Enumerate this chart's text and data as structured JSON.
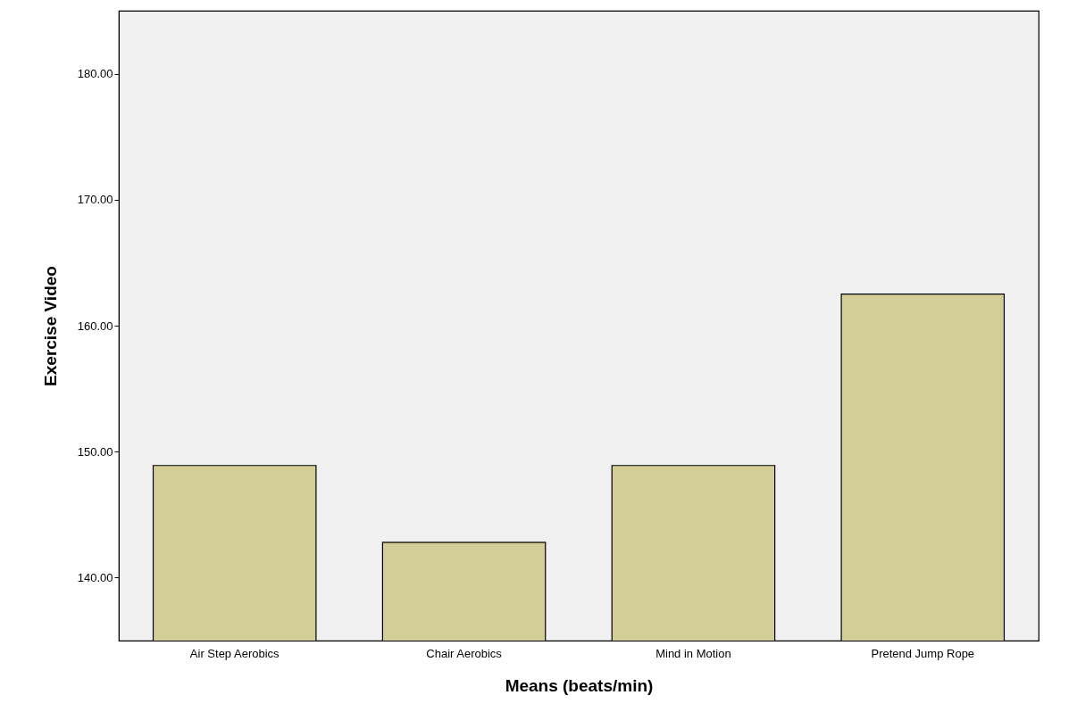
{
  "chart_data": {
    "type": "bar",
    "xlabel": "Means (beats/min)",
    "ylabel": "Exercise Video",
    "categories": [
      "Air Step Aerobics",
      "Chair Aerobics",
      "Mind in Motion",
      "Pretend Jump Rope"
    ],
    "values": [
      148.9,
      142.8,
      148.9,
      162.5
    ],
    "color": "#d3ce97",
    "ylim": [
      135,
      185
    ],
    "yticks": [
      {
        "value": 140,
        "label": "140.00"
      },
      {
        "value": 150,
        "label": "150.00"
      },
      {
        "value": 160,
        "label": "160.00"
      },
      {
        "value": 170,
        "label": "170.00"
      },
      {
        "value": 180,
        "label": "180.00"
      }
    ]
  }
}
